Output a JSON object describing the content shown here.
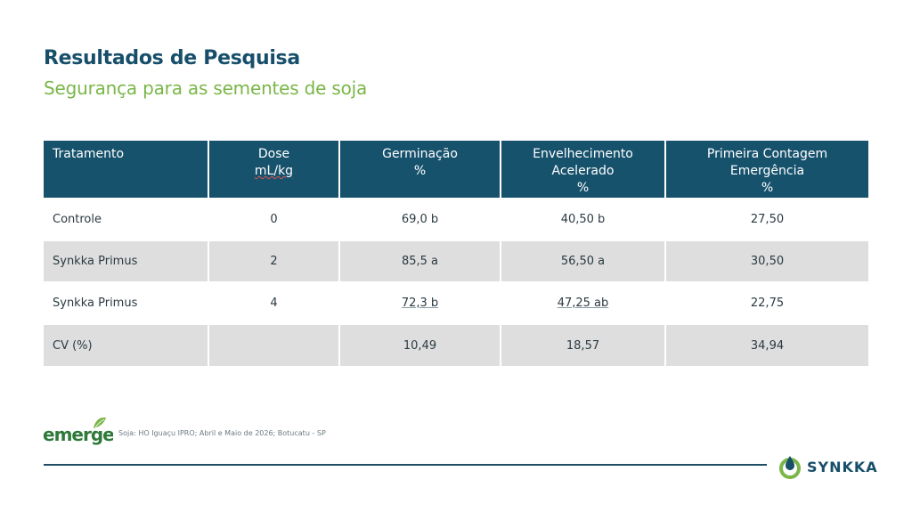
{
  "header": {
    "title": "Resultados de Pesquisa",
    "subtitle": "Segurança para as sementes de soja"
  },
  "table": {
    "headers": [
      [
        "Tratamento"
      ],
      [
        "Dose",
        "mL/kg"
      ],
      [
        "Germinação",
        "%"
      ],
      [
        "Envelhecimento",
        "Acelerado",
        "%"
      ],
      [
        "Primeira Contagem",
        "Emergência",
        "%"
      ]
    ],
    "rows": [
      [
        "Controle",
        "0",
        "69,0 b",
        "40,50 b",
        "27,50"
      ],
      [
        "Synkka Primus",
        "2",
        "85,5 a",
        "56,50 a",
        "30,50"
      ],
      [
        "Synkka Primus",
        "4",
        "72,3 b",
        "47,25 ab",
        "22,75"
      ],
      [
        "CV (%)",
        "",
        "10,49",
        "18,57",
        "34,94"
      ]
    ]
  },
  "footer": {
    "logo_text": "emerge",
    "note": "Soja: HO Iguaçu IPRO; Abril e Maio de 2026; Botucatu - SP",
    "brand": "SYNKKA"
  },
  "colors": {
    "title": "#174f6b",
    "subtitle": "#7ab648",
    "header_bg": "#17526d",
    "shade_row": "#dedede",
    "brand_green": "#7ab648"
  }
}
